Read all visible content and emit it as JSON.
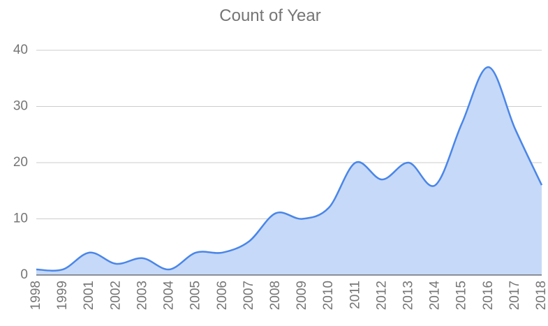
{
  "chart_data": {
    "type": "area",
    "title": "Count of Year",
    "categories": [
      "1998",
      "1999",
      "2001",
      "2002",
      "2003",
      "2004",
      "2005",
      "2006",
      "2007",
      "2008",
      "2009",
      "2010",
      "2011",
      "2012",
      "2013",
      "2014",
      "2015",
      "2016",
      "2017",
      "2018"
    ],
    "values": [
      1,
      1,
      4,
      2,
      3,
      1,
      4,
      4,
      6,
      11,
      10,
      12,
      20,
      17,
      20,
      16,
      27,
      37,
      26,
      16
    ],
    "color": "#4a86e8",
    "fill": "#c6d9f8",
    "ylim": [
      0,
      40
    ],
    "yticks": [
      0,
      10,
      20,
      30,
      40
    ],
    "grid": true
  }
}
